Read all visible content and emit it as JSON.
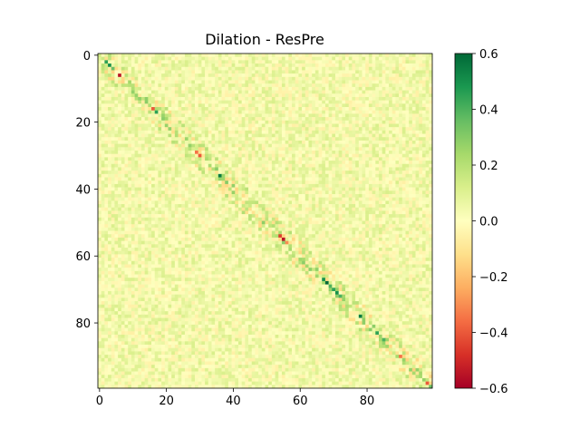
{
  "chart_data": {
    "type": "heatmap",
    "title": "Dilation - ResPre",
    "xlabel": "",
    "ylabel": "",
    "rows": 100,
    "cols": 100,
    "xlim": [
      -0.5,
      99.5
    ],
    "ylim": [
      99.5,
      -0.5
    ],
    "x_ticks": [
      0,
      20,
      40,
      60,
      80
    ],
    "y_ticks": [
      0,
      20,
      40,
      60,
      80
    ],
    "x_tick_labels": [
      "0",
      "20",
      "40",
      "60",
      "80"
    ],
    "y_tick_labels": [
      "0",
      "20",
      "40",
      "60",
      "80"
    ],
    "colormap": "RdYlGn",
    "vmin": -0.6,
    "vmax": 0.6,
    "colorbar_ticks": [
      -0.6,
      -0.4,
      -0.2,
      0.0,
      0.2,
      0.4,
      0.6
    ],
    "colorbar_tick_labels": [
      "−0.6",
      "−0.4",
      "−0.2",
      "0.0",
      "0.2",
      "0.4",
      "0.6"
    ],
    "colormap_stops": [
      {
        "v": 0.0,
        "c": "#a50026"
      },
      {
        "v": 0.1,
        "c": "#d73027"
      },
      {
        "v": 0.2,
        "c": "#f46d43"
      },
      {
        "v": 0.3,
        "c": "#fdae61"
      },
      {
        "v": 0.4,
        "c": "#fee08b"
      },
      {
        "v": 0.5,
        "c": "#ffffbf"
      },
      {
        "v": 0.6,
        "c": "#d9ef8b"
      },
      {
        "v": 0.7,
        "c": "#a6d96a"
      },
      {
        "v": 0.8,
        "c": "#66bd63"
      },
      {
        "v": 0.9,
        "c": "#1a9850"
      },
      {
        "v": 1.0,
        "c": "#006837"
      }
    ],
    "background_value_range": [
      -0.2,
      0.2
    ],
    "diagonal_notable_values": [
      {
        "i": 2,
        "value": 0.45
      },
      {
        "i": 3,
        "value": 0.5
      },
      {
        "i": 4,
        "value": 0.35
      },
      {
        "i": 6,
        "value": -0.55
      },
      {
        "i": 16,
        "value": -0.4
      },
      {
        "i": 17,
        "value": 0.45
      },
      {
        "i": 29,
        "value": -0.35
      },
      {
        "i": 30,
        "value": -0.4
      },
      {
        "i": 36,
        "value": 0.55
      },
      {
        "i": 38,
        "value": 0.3
      },
      {
        "i": 54,
        "value": -0.45
      },
      {
        "i": 55,
        "value": -0.55
      },
      {
        "i": 56,
        "value": -0.3
      },
      {
        "i": 67,
        "value": 0.5
      },
      {
        "i": 68,
        "value": 0.6
      },
      {
        "i": 69,
        "value": 0.4
      },
      {
        "i": 70,
        "value": 0.45
      },
      {
        "i": 71,
        "value": 0.5
      },
      {
        "i": 72,
        "value": 0.4
      },
      {
        "i": 78,
        "value": 0.55
      },
      {
        "i": 83,
        "value": 0.45
      },
      {
        "i": 85,
        "value": 0.4
      },
      {
        "i": 90,
        "value": -0.35
      },
      {
        "i": 98,
        "value": -0.4
      },
      {
        "i": 99,
        "value": 0.35
      }
    ]
  }
}
